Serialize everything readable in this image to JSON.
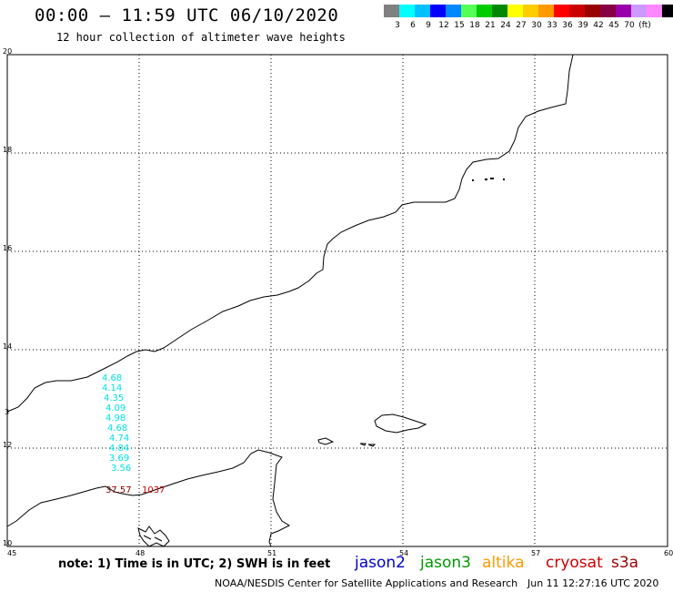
{
  "header": {
    "title": "00:00 — 11:59 UTC 06/10/2020",
    "subtitle": "12 hour collection of altimeter wave heights"
  },
  "legend": {
    "colors": [
      "#808080",
      "#00ffff",
      "#00c0ff",
      "#0000ff",
      "#0088ff",
      "#55ff55",
      "#00cc00",
      "#008800",
      "#ffff00",
      "#ffcc00",
      "#ff9900",
      "#ff0000",
      "#cc0000",
      "#990000",
      "#880044",
      "#9900aa",
      "#cc99ff",
      "#ff88ff",
      "#000000"
    ],
    "labels": [
      "3",
      "6",
      "9",
      "12",
      "15",
      "18",
      "21",
      "24",
      "27",
      "30",
      "33",
      "36",
      "39",
      "42",
      "45",
      "70",
      "(ft)"
    ]
  },
  "map": {
    "x_ticks": [
      "45",
      "48",
      "51",
      "54",
      "57",
      "60"
    ],
    "y_ticks": [
      "20",
      "18",
      "16",
      "14",
      "12",
      "10"
    ],
    "left_edge_label": "3",
    "measurements": [
      {
        "value": "4.68",
        "color": "#00e0e0"
      },
      {
        "value": "4.14",
        "color": "#00e0e0"
      },
      {
        "value": "4.35",
        "color": "#00e0e0"
      },
      {
        "value": "4.09",
        "color": "#00e0e0"
      },
      {
        "value": "4.98",
        "color": "#00e0e0"
      },
      {
        "value": "4.68",
        "color": "#00e0e0"
      },
      {
        "value": "4.74",
        "color": "#00e0e0"
      },
      {
        "value": "4.84",
        "color": "#00e0e0"
      },
      {
        "value": "3.69",
        "color": "#00e0e0"
      },
      {
        "value": "3.56",
        "color": "#00e0e0"
      }
    ],
    "bottom_left_value": {
      "value": "37.57",
      "color": "#8b0000"
    },
    "bottom_right_value": {
      "value": "1037",
      "color": "#cc0000"
    }
  },
  "note": "note: 1) Time is in UTC; 2) SWH is in feet",
  "satellites": [
    {
      "name": "jason2",
      "color": "#0000cc"
    },
    {
      "name": "jason3",
      "color": "#009900"
    },
    {
      "name": "altika",
      "color": "#ff9900"
    },
    {
      "name": "cryosat",
      "color": "#cc0000"
    },
    {
      "name": "s3a",
      "color": "#990000"
    }
  ],
  "footer": {
    "credit": "NOAA/NESDIS Center for Satellite Applications and Research",
    "timestamp": "Jun 11 12:27:16 UTC 2020"
  }
}
